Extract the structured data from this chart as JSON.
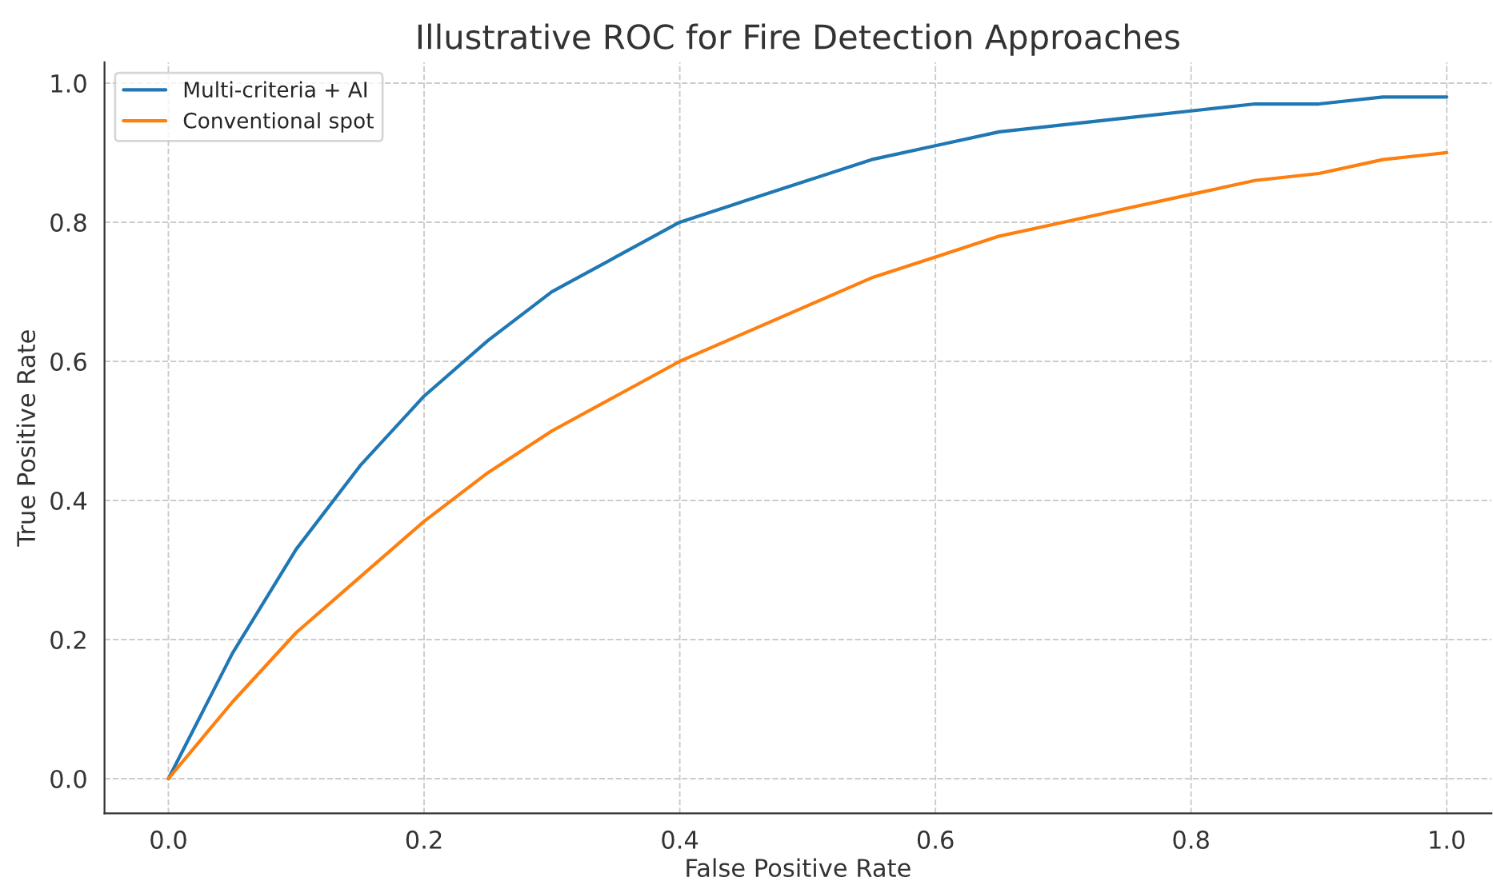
{
  "chart_data": {
    "type": "line",
    "title": "Illustrative ROC for Fire Detection Approaches",
    "xlabel": "False Positive Rate",
    "ylabel": "True Positive Rate",
    "x": [
      0,
      0.05,
      0.1,
      0.15,
      0.2,
      0.25,
      0.3,
      0.35,
      0.4,
      0.45,
      0.5,
      0.55,
      0.6,
      0.65,
      0.7,
      0.75,
      0.8,
      0.85,
      0.9,
      0.95,
      1.0
    ],
    "series": [
      {
        "name": "Multi-criteria + AI",
        "color": "#1f77b4",
        "values": [
          0,
          0.18,
          0.33,
          0.45,
          0.55,
          0.63,
          0.7,
          0.75,
          0.8,
          0.83,
          0.86,
          0.89,
          0.91,
          0.93,
          0.94,
          0.95,
          0.96,
          0.97,
          0.97,
          0.98,
          0.98
        ]
      },
      {
        "name": "Conventional spot",
        "color": "#ff7f0e",
        "values": [
          0,
          0.11,
          0.21,
          0.29,
          0.37,
          0.44,
          0.5,
          0.55,
          0.6,
          0.64,
          0.68,
          0.72,
          0.75,
          0.78,
          0.8,
          0.82,
          0.84,
          0.86,
          0.87,
          0.89,
          0.9
        ]
      }
    ],
    "xlim": [
      -0.05,
      1.035
    ],
    "ylim": [
      -0.05,
      1.03
    ],
    "xticks": [
      {
        "value": 0,
        "label": "0.0"
      },
      {
        "value": 0.2,
        "label": "0.2"
      },
      {
        "value": 0.4,
        "label": "0.4"
      },
      {
        "value": 0.6,
        "label": "0.6"
      },
      {
        "value": 0.8,
        "label": "0.8"
      },
      {
        "value": 1.0,
        "label": "1.0"
      }
    ],
    "yticks": [
      {
        "value": 0,
        "label": "0.0"
      },
      {
        "value": 0.2,
        "label": "0.2"
      },
      {
        "value": 0.4,
        "label": "0.4"
      },
      {
        "value": 0.6,
        "label": "0.6"
      },
      {
        "value": 0.8,
        "label": "0.8"
      },
      {
        "value": 1.0,
        "label": "1.0"
      }
    ],
    "grid": true,
    "legend": "top left",
    "line_style": "solid"
  }
}
